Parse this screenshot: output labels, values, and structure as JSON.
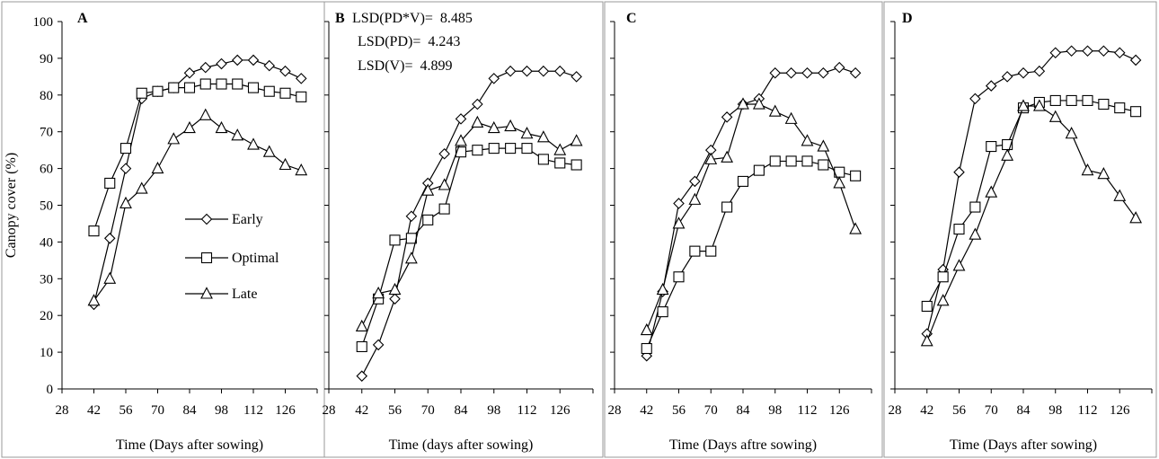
{
  "chart_data": [
    {
      "type": "line",
      "panel_label": "A",
      "ylabel": "Canopy cover (%)",
      "xlabel": "Time  (Days after sowing)",
      "xlim": [
        28,
        140
      ],
      "ylim": [
        0,
        100
      ],
      "xticks": [
        28,
        42,
        56,
        70,
        84,
        98,
        112,
        126
      ],
      "yticks": [
        0,
        10,
        20,
        30,
        40,
        50,
        60,
        70,
        80,
        90,
        100
      ],
      "legend": {
        "placement": "center-left",
        "entries": [
          {
            "name": "Early",
            "marker": "diamond"
          },
          {
            "name": "Optimal",
            "marker": "square"
          },
          {
            "name": "Late",
            "marker": "triangle"
          }
        ]
      },
      "series": [
        {
          "name": "Early",
          "marker": "diamond",
          "x": [
            42,
            49,
            56,
            63,
            70,
            77,
            84,
            91,
            98,
            105,
            112,
            119,
            126,
            133
          ],
          "y": [
            23,
            41,
            60,
            79,
            81,
            82,
            86,
            87.5,
            88.5,
            89.5,
            89.5,
            88,
            86.5,
            84.5
          ]
        },
        {
          "name": "Optimal",
          "marker": "square",
          "x": [
            42,
            49,
            56,
            63,
            70,
            77,
            84,
            91,
            98,
            105,
            112,
            119,
            126,
            133
          ],
          "y": [
            43,
            56,
            65.5,
            80.5,
            81,
            82,
            82,
            83,
            83,
            83,
            82,
            81,
            80.5,
            79.5
          ]
        },
        {
          "name": "Late",
          "marker": "triangle",
          "x": [
            42,
            49,
            56,
            63,
            70,
            77,
            84,
            91,
            98,
            105,
            112,
            119,
            126,
            133
          ],
          "y": [
            24,
            30,
            50.5,
            54.5,
            60,
            68,
            71,
            74.5,
            71,
            69,
            66.5,
            64.5,
            61,
            59.5
          ]
        }
      ]
    },
    {
      "type": "line",
      "panel_label": "B",
      "xlabel": "Time  (days after sowing)",
      "xlim": [
        28,
        140
      ],
      "ylim": [
        0,
        100
      ],
      "xticks": [
        28,
        42,
        56,
        70,
        84,
        98,
        112,
        126
      ],
      "annotations": [
        "LSD(PD*V)=  8.485",
        "LSD(PD)=  4.243",
        "LSD(V)=  4.899"
      ],
      "series": [
        {
          "name": "Early",
          "marker": "diamond",
          "x": [
            42,
            49,
            56,
            63,
            70,
            77,
            84,
            91,
            98,
            105,
            112,
            119,
            126,
            133
          ],
          "y": [
            3.5,
            12,
            24.5,
            47,
            56,
            64,
            73.5,
            77.5,
            84.5,
            86.5,
            86.5,
            86.5,
            86.5,
            85
          ]
        },
        {
          "name": "Optimal",
          "marker": "square",
          "x": [
            42,
            49,
            56,
            63,
            70,
            77,
            84,
            91,
            98,
            105,
            112,
            119,
            126,
            133
          ],
          "y": [
            11.5,
            24.5,
            40.5,
            41,
            46,
            49,
            64.5,
            65,
            65.5,
            65.5,
            65.5,
            62.5,
            61.5,
            61
          ]
        },
        {
          "name": "Late",
          "marker": "triangle",
          "x": [
            42,
            49,
            56,
            63,
            70,
            77,
            84,
            91,
            98,
            105,
            112,
            119,
            126,
            133
          ],
          "y": [
            17,
            26,
            27,
            35.5,
            54,
            55.5,
            67.5,
            72.5,
            71,
            71.5,
            69.5,
            68.5,
            65,
            67.5
          ]
        }
      ]
    },
    {
      "type": "line",
      "panel_label": "C",
      "xlabel": "Time  (Days aftre sowing)",
      "xlim": [
        28,
        140
      ],
      "ylim": [
        0,
        100
      ],
      "xticks": [
        28,
        42,
        56,
        70,
        84,
        98,
        112,
        126
      ],
      "series": [
        {
          "name": "Early",
          "marker": "diamond",
          "x": [
            42,
            49,
            56,
            63,
            70,
            77,
            84,
            91,
            98,
            105,
            112,
            119,
            126,
            133
          ],
          "y": [
            9,
            26.5,
            50.5,
            56.5,
            65,
            74,
            77.5,
            79,
            86,
            86,
            86,
            86,
            87.5,
            86
          ]
        },
        {
          "name": "Optimal",
          "marker": "square",
          "x": [
            42,
            49,
            56,
            63,
            70,
            77,
            84,
            91,
            98,
            105,
            112,
            119,
            126,
            133
          ],
          "y": [
            11,
            21,
            30.5,
            37.5,
            37.5,
            49.5,
            56.5,
            59.5,
            62,
            62,
            62,
            61,
            59,
            58
          ]
        },
        {
          "name": "Late",
          "marker": "triangle",
          "x": [
            42,
            49,
            56,
            63,
            70,
            77,
            84,
            91,
            98,
            105,
            112,
            119,
            126,
            133
          ],
          "y": [
            16,
            27,
            45,
            51.5,
            62.5,
            63,
            77.5,
            77.5,
            75.5,
            73.5,
            67.5,
            66,
            56,
            43.5
          ]
        }
      ]
    },
    {
      "type": "line",
      "panel_label": "D",
      "xlabel": "Time  (Days after sowing)",
      "xlim": [
        28,
        140
      ],
      "ylim": [
        0,
        100
      ],
      "xticks": [
        28,
        42,
        56,
        70,
        84,
        98,
        112,
        126
      ],
      "series": [
        {
          "name": "Early",
          "marker": "diamond",
          "x": [
            42,
            49,
            56,
            63,
            70,
            77,
            84,
            91,
            98,
            105,
            112,
            119,
            126,
            133
          ],
          "y": [
            15,
            32.5,
            59,
            79,
            82.5,
            85,
            86,
            86.5,
            91.5,
            92,
            92,
            92,
            91.5,
            89.5
          ]
        },
        {
          "name": "Optimal",
          "marker": "square",
          "x": [
            42,
            49,
            56,
            63,
            70,
            77,
            84,
            91,
            98,
            105,
            112,
            119,
            126,
            133
          ],
          "y": [
            22.5,
            30.5,
            43.5,
            49.5,
            66,
            66.5,
            76.5,
            78,
            78.5,
            78.5,
            78.5,
            77.5,
            76.5,
            75.5
          ]
        },
        {
          "name": "Late",
          "marker": "triangle",
          "x": [
            42,
            49,
            56,
            63,
            70,
            77,
            84,
            91,
            98,
            105,
            112,
            119,
            126,
            133
          ],
          "y": [
            13,
            24,
            33.5,
            42,
            53.5,
            63.5,
            77,
            77,
            74,
            69.5,
            59.5,
            58.5,
            52.5,
            46.5
          ]
        }
      ]
    }
  ]
}
